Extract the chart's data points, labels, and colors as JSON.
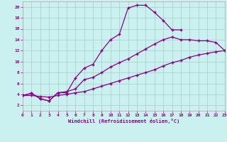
{
  "background_color": "#caf0f0",
  "grid_color": "#a8cccc",
  "line_color": "#880088",
  "marker": "+",
  "markersize": 3.5,
  "markeredgewidth": 1.0,
  "linewidth": 0.9,
  "xlim": [
    0,
    23
  ],
  "ylim": [
    1,
    21
  ],
  "xticks": [
    0,
    1,
    2,
    3,
    4,
    5,
    6,
    7,
    8,
    9,
    10,
    11,
    12,
    13,
    14,
    15,
    16,
    17,
    18,
    19,
    20,
    21,
    22,
    23
  ],
  "yticks": [
    2,
    4,
    6,
    8,
    10,
    12,
    14,
    16,
    18,
    20
  ],
  "xlabel": "Windchill (Refroidissement éolien,°C)",
  "curve1_x": [
    0,
    1,
    2,
    3,
    4,
    5,
    6,
    7,
    8,
    9,
    10,
    11,
    12,
    13,
    14,
    15,
    16,
    17,
    18
  ],
  "curve1_y": [
    3.8,
    4.2,
    3.2,
    2.8,
    4.3,
    4.3,
    7.0,
    8.8,
    9.5,
    12.0,
    14.0,
    15.0,
    19.8,
    20.3,
    20.3,
    19.0,
    17.5,
    15.8,
    15.8
  ],
  "curve2_x": [
    0,
    1,
    2,
    3,
    4,
    5,
    6,
    7,
    8,
    9,
    10,
    11,
    12,
    13,
    14,
    15,
    16,
    17,
    18,
    19,
    20,
    21,
    22,
    23
  ],
  "curve2_y": [
    3.8,
    4.2,
    3.2,
    2.8,
    4.3,
    4.5,
    5.0,
    6.7,
    7.1,
    8.0,
    9.0,
    9.8,
    10.5,
    11.4,
    12.3,
    13.2,
    14.0,
    14.5,
    14.0,
    14.0,
    13.8,
    13.8,
    13.5,
    12.0
  ],
  "curve3_x": [
    0,
    1,
    2,
    3,
    4,
    5,
    6,
    7,
    8,
    9,
    10,
    11,
    12,
    13,
    14,
    15,
    16,
    17,
    18,
    19,
    20,
    21,
    22,
    23
  ],
  "curve3_y": [
    3.8,
    3.8,
    3.6,
    3.5,
    3.8,
    4.0,
    4.3,
    4.5,
    5.0,
    5.5,
    6.0,
    6.5,
    7.0,
    7.5,
    8.0,
    8.5,
    9.2,
    9.8,
    10.2,
    10.8,
    11.2,
    11.5,
    11.8,
    12.0
  ]
}
